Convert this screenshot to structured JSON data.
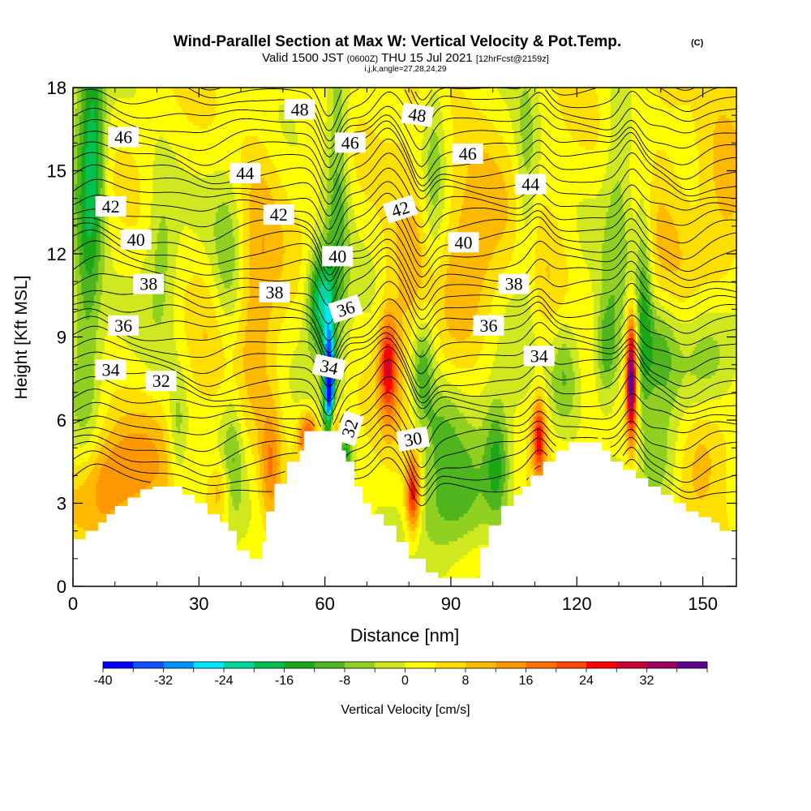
{
  "chart_data": {
    "type": "heatmap",
    "title": "Wind-Parallel Section at Max W: Vertical Velocity & Pot.Temp.",
    "title_mark": "(C)",
    "subtitle": {
      "valid": "Valid 1500 JST",
      "utc": "(0600Z)",
      "date": "THU 15 Jul 2021",
      "fcst": "[12hrFcst@2159z]"
    },
    "indices": "i,j,k,angle=27,28,24,29",
    "xlabel": "Distance [nm]",
    "ylabel": "Height [Kft MSL]",
    "xlim": [
      0,
      158
    ],
    "ylim": [
      0,
      18
    ],
    "x_ticks": [
      "0",
      "30",
      "60",
      "90",
      "120",
      "150"
    ],
    "y_ticks": [
      "0",
      "3",
      "6",
      "9",
      "12",
      "15",
      "18"
    ],
    "colorbar": {
      "label": "Vertical Velocity [cm/s]",
      "tick_labels": [
        "-40",
        "-32",
        "-24",
        "-16",
        "-8",
        "0",
        "8",
        "16",
        "24",
        "32"
      ],
      "colors": [
        "#0000ff",
        "#1050ff",
        "#0090ff",
        "#00e6ff",
        "#00d7a0",
        "#00c050",
        "#18a818",
        "#4fb51f",
        "#90d020",
        "#cfe81f",
        "#ffff00",
        "#ffdf00",
        "#ffb900",
        "#ff9800",
        "#ff7000",
        "#ff4500",
        "#ff0000",
        "#cc0033",
        "#a00060",
        "#600090"
      ]
    },
    "terrain": [
      [
        0,
        1.7
      ],
      [
        3,
        1.7
      ],
      [
        3,
        2
      ],
      [
        6,
        2
      ],
      [
        6,
        2.3
      ],
      [
        8,
        2.3
      ],
      [
        8,
        2.6
      ],
      [
        10,
        2.6
      ],
      [
        10,
        2.9
      ],
      [
        13,
        2.9
      ],
      [
        13,
        3.2
      ],
      [
        16,
        3.2
      ],
      [
        16,
        3.5
      ],
      [
        19,
        3.5
      ],
      [
        19,
        3.6
      ],
      [
        26,
        3.6
      ],
      [
        26,
        3.3
      ],
      [
        29,
        3.3
      ],
      [
        29,
        3
      ],
      [
        32,
        3
      ],
      [
        32,
        2.6
      ],
      [
        35,
        2.6
      ],
      [
        35,
        2.3
      ],
      [
        37,
        2.3
      ],
      [
        37,
        2
      ],
      [
        39,
        2
      ],
      [
        39,
        1.3
      ],
      [
        42,
        1.3
      ],
      [
        42,
        1
      ],
      [
        45,
        1
      ],
      [
        45,
        1.6
      ],
      [
        46,
        1.6
      ],
      [
        46,
        2.7
      ],
      [
        48,
        2.7
      ],
      [
        48,
        3.7
      ],
      [
        51,
        3.7
      ],
      [
        51,
        4.5
      ],
      [
        54,
        4.5
      ],
      [
        54,
        4.9
      ],
      [
        55,
        4.9
      ],
      [
        55,
        5.6
      ],
      [
        64,
        5.6
      ],
      [
        64,
        4.9
      ],
      [
        65,
        4.9
      ],
      [
        65,
        4.5
      ],
      [
        67,
        4.5
      ],
      [
        67,
        3.6
      ],
      [
        69,
        3.6
      ],
      [
        69,
        3
      ],
      [
        71,
        3
      ],
      [
        71,
        2.6
      ],
      [
        74,
        2.6
      ],
      [
        74,
        2.2
      ],
      [
        77,
        2.2
      ],
      [
        77,
        1.6
      ],
      [
        80,
        1.6
      ],
      [
        80,
        1
      ],
      [
        84,
        1
      ],
      [
        84,
        0.5
      ],
      [
        87,
        0.5
      ],
      [
        87,
        0.3
      ],
      [
        97,
        0.3
      ],
      [
        97,
        1.4
      ],
      [
        99,
        1.4
      ],
      [
        99,
        2.2
      ],
      [
        102,
        2.2
      ],
      [
        102,
        2.9
      ],
      [
        105,
        2.9
      ],
      [
        105,
        3.3
      ],
      [
        107,
        3.3
      ],
      [
        107,
        3.6
      ],
      [
        109,
        3.6
      ],
      [
        109,
        4
      ],
      [
        112,
        4
      ],
      [
        112,
        4.5
      ],
      [
        115,
        4.5
      ],
      [
        115,
        4.9
      ],
      [
        118,
        4.9
      ],
      [
        118,
        5.2
      ],
      [
        126,
        5.2
      ],
      [
        126,
        4.9
      ],
      [
        128,
        4.9
      ],
      [
        128,
        4.5
      ],
      [
        131,
        4.5
      ],
      [
        131,
        4.2
      ],
      [
        134,
        4.2
      ],
      [
        134,
        3.9
      ],
      [
        137,
        3.9
      ],
      [
        137,
        3.6
      ],
      [
        140,
        3.6
      ],
      [
        140,
        3.3
      ],
      [
        143,
        3.3
      ],
      [
        143,
        3
      ],
      [
        146,
        3
      ],
      [
        146,
        2.7
      ],
      [
        149,
        2.7
      ],
      [
        149,
        2.5
      ],
      [
        152,
        2.5
      ],
      [
        152,
        2.3
      ],
      [
        154,
        2.3
      ],
      [
        154,
        2
      ],
      [
        158,
        2
      ]
    ],
    "w_features": [
      {
        "x": 3,
        "y": 12,
        "w": -12,
        "sx": 2.5,
        "sy": 5.5
      },
      {
        "x": 5,
        "y": 16,
        "w": -14,
        "sx": 2,
        "sy": 3
      },
      {
        "x": 6,
        "y": 3.6,
        "w": 12,
        "sx": 6,
        "sy": 1.4
      },
      {
        "x": 16,
        "y": 4.5,
        "w": 8,
        "sx": 6,
        "sy": 1.4
      },
      {
        "x": 21,
        "y": 12.2,
        "w": -8,
        "sx": 2.5,
        "sy": 2.2
      },
      {
        "x": 25,
        "y": 5.5,
        "w": -9,
        "sx": 1.6,
        "sy": 1.5
      },
      {
        "x": 34,
        "y": 9.5,
        "w": 5,
        "sx": 5,
        "sy": 2
      },
      {
        "x": 37,
        "y": 11,
        "w": -11,
        "sx": 2.8,
        "sy": 2.5
      },
      {
        "x": 38,
        "y": 4.5,
        "w": -9,
        "sx": 1.8,
        "sy": 1.7
      },
      {
        "x": 35,
        "y": 3.4,
        "w": 10,
        "sx": 2,
        "sy": 0.8
      },
      {
        "x": 44,
        "y": 11,
        "w": 9,
        "sx": 4,
        "sy": 4
      },
      {
        "x": 47,
        "y": 4.3,
        "w": 13,
        "sx": 1.8,
        "sy": 1.5
      },
      {
        "x": 56,
        "y": 5.4,
        "w": 22,
        "sx": 1.6,
        "sy": 0.6
      },
      {
        "x": 59,
        "y": 10.3,
        "w": -24,
        "sx": 2.2,
        "sy": 1.3
      },
      {
        "x": 61,
        "y": 7.2,
        "w": -42,
        "sx": 0.9,
        "sy": 1.5
      },
      {
        "x": 62,
        "y": 5.8,
        "w": 18,
        "sx": 1.2,
        "sy": 0.6
      },
      {
        "x": 65,
        "y": 4.8,
        "w": -14,
        "sx": 1.2,
        "sy": 0.6
      },
      {
        "x": 63,
        "y": 14,
        "w": -12,
        "sx": 2,
        "sy": 4.5
      },
      {
        "x": 75,
        "y": 8,
        "w": 24,
        "sx": 1.5,
        "sy": 1.3
      },
      {
        "x": 80,
        "y": 11,
        "w": 8,
        "sx": 4,
        "sy": 4
      },
      {
        "x": 81,
        "y": 3.3,
        "w": 26,
        "sx": 1.2,
        "sy": 1
      },
      {
        "x": 83,
        "y": 8,
        "w": -15,
        "sx": 2,
        "sy": 1.4
      },
      {
        "x": 90,
        "y": 3,
        "w": -12,
        "sx": 6,
        "sy": 1.5
      },
      {
        "x": 87,
        "y": 5.8,
        "w": -7,
        "sx": 4,
        "sy": 1.2
      },
      {
        "x": 86,
        "y": 14.5,
        "w": -8,
        "sx": 2,
        "sy": 3.5
      },
      {
        "x": 96,
        "y": 12,
        "w": 12,
        "sx": 6,
        "sy": 3
      },
      {
        "x": 101,
        "y": 4.5,
        "w": -12,
        "sx": 2,
        "sy": 1.5
      },
      {
        "x": 100,
        "y": 9,
        "w": -6,
        "sx": 6,
        "sy": 3
      },
      {
        "x": 108,
        "y": 14.5,
        "w": -8,
        "sx": 2,
        "sy": 3
      },
      {
        "x": 111,
        "y": 5.4,
        "w": 24,
        "sx": 1.1,
        "sy": 1
      },
      {
        "x": 113,
        "y": 10.5,
        "w": 6,
        "sx": 4,
        "sy": 2
      },
      {
        "x": 117,
        "y": 7.7,
        "w": -10,
        "sx": 2.5,
        "sy": 1.5
      },
      {
        "x": 127,
        "y": 8.5,
        "w": -14,
        "sx": 2,
        "sy": 1.3
      },
      {
        "x": 130,
        "y": 13,
        "w": -8,
        "sx": 2.5,
        "sy": 4
      },
      {
        "x": 133,
        "y": 7.5,
        "w": 38,
        "sx": 0.9,
        "sy": 1.6
      },
      {
        "x": 136,
        "y": 10,
        "w": -15,
        "sx": 1.5,
        "sy": 3
      },
      {
        "x": 140,
        "y": 8.5,
        "w": -12,
        "sx": 3,
        "sy": 1.5
      },
      {
        "x": 152,
        "y": 8.5,
        "w": -10,
        "sx": 5,
        "sy": 1.5
      },
      {
        "x": 140,
        "y": 4.5,
        "w": -8,
        "sx": 3,
        "sy": 1.4
      },
      {
        "x": 150,
        "y": 5,
        "w": 9,
        "sx": 4,
        "sy": 1.5
      },
      {
        "x": 140,
        "y": 14,
        "w": 6,
        "sx": 5,
        "sy": 4
      },
      {
        "x": 155,
        "y": 14,
        "w": 6,
        "sx": 4,
        "sy": 4
      }
    ],
    "contour_labels": [
      {
        "text": "48",
        "x": 54,
        "y": 17.2,
        "angle": 0
      },
      {
        "text": "48",
        "x": 82,
        "y": 17.0,
        "angle": 8
      },
      {
        "text": "46",
        "x": 12,
        "y": 16.2,
        "angle": 0
      },
      {
        "text": "46",
        "x": 66,
        "y": 16.0,
        "angle": 0
      },
      {
        "text": "46",
        "x": 94,
        "y": 15.6,
        "angle": 0
      },
      {
        "text": "44",
        "x": 41,
        "y": 14.9,
        "angle": 0
      },
      {
        "text": "44",
        "x": 109,
        "y": 14.5,
        "angle": 0
      },
      {
        "text": "42",
        "x": 9,
        "y": 13.7,
        "angle": 0
      },
      {
        "text": "42",
        "x": 49,
        "y": 13.4,
        "angle": 0
      },
      {
        "text": "42",
        "x": 78,
        "y": 13.6,
        "angle": -18
      },
      {
        "text": "40",
        "x": 15,
        "y": 12.5,
        "angle": 0
      },
      {
        "text": "40",
        "x": 63,
        "y": 11.9,
        "angle": 0
      },
      {
        "text": "40",
        "x": 93,
        "y": 12.4,
        "angle": 0
      },
      {
        "text": "38",
        "x": 18,
        "y": 10.9,
        "angle": 0
      },
      {
        "text": "38",
        "x": 48,
        "y": 10.6,
        "angle": 0
      },
      {
        "text": "38",
        "x": 105,
        "y": 10.9,
        "angle": 0
      },
      {
        "text": "36",
        "x": 12,
        "y": 9.4,
        "angle": 0
      },
      {
        "text": "36",
        "x": 65,
        "y": 10.0,
        "angle": -18
      },
      {
        "text": "36",
        "x": 99,
        "y": 9.4,
        "angle": 0
      },
      {
        "text": "34",
        "x": 9,
        "y": 7.8,
        "angle": 0
      },
      {
        "text": "34",
        "x": 61,
        "y": 7.9,
        "angle": 12
      },
      {
        "text": "34",
        "x": 111,
        "y": 8.3,
        "angle": 0
      },
      {
        "text": "32",
        "x": 21,
        "y": 7.4,
        "angle": 0
      },
      {
        "text": "32",
        "x": 66,
        "y": 5.7,
        "angle": -72
      },
      {
        "text": "30",
        "x": 81,
        "y": 5.3,
        "angle": -10
      }
    ]
  }
}
